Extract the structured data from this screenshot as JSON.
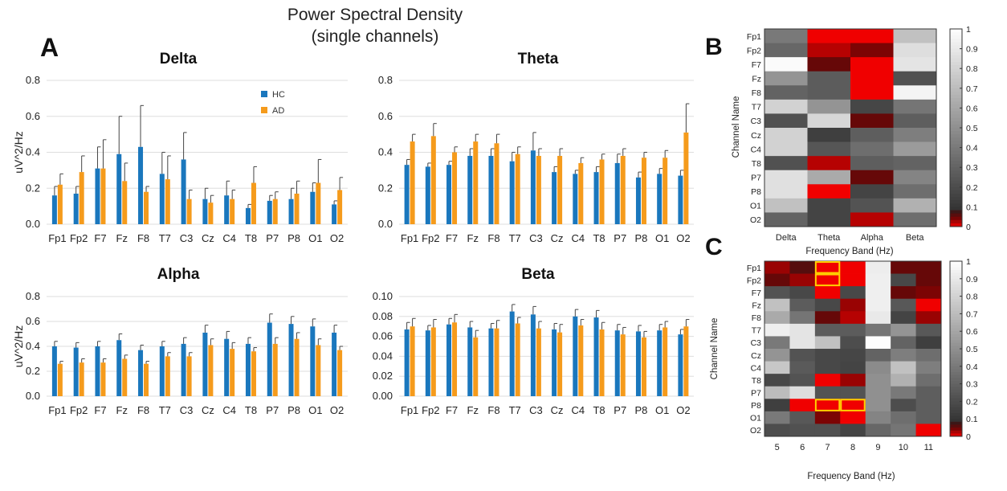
{
  "figure": {
    "title_line1": "Power Spectral Density",
    "title_line2": "(single channels)",
    "panel_a": "A",
    "panel_b": "B",
    "panel_c": "C"
  },
  "colors": {
    "hc": "#1a77bd",
    "ad": "#f59b1c",
    "grid": "#dedede",
    "highlight": "#ffd200"
  },
  "chart_data": [
    {
      "id": "delta",
      "type": "bar",
      "title": "Delta",
      "ylabel": "uV^2/Hz",
      "ylim": [
        0,
        0.8
      ],
      "yticks": [
        "0.0",
        "0.2",
        "0.4",
        "0.6",
        "0.8"
      ],
      "categories": [
        "Fp1",
        "Fp2",
        "F7",
        "Fz",
        "F8",
        "T7",
        "C3",
        "Cz",
        "C4",
        "T8",
        "P7",
        "P8",
        "O1",
        "O2"
      ],
      "legend": [
        "HC",
        "AD"
      ],
      "series": [
        {
          "name": "HC",
          "values": [
            0.16,
            0.17,
            0.31,
            0.39,
            0.43,
            0.28,
            0.36,
            0.14,
            0.16,
            0.09,
            0.13,
            0.14,
            0.18,
            0.11
          ],
          "err": [
            0.05,
            0.04,
            0.12,
            0.21,
            0.23,
            0.12,
            0.15,
            0.06,
            0.08,
            0.02,
            0.03,
            0.06,
            0.05,
            0.02
          ]
        },
        {
          "name": "AD",
          "values": [
            0.22,
            0.29,
            0.31,
            0.24,
            0.18,
            0.25,
            0.14,
            0.12,
            0.14,
            0.23,
            0.14,
            0.17,
            0.23,
            0.19
          ],
          "err": [
            0.06,
            0.09,
            0.16,
            0.1,
            0.03,
            0.13,
            0.05,
            0.04,
            0.05,
            0.09,
            0.04,
            0.07,
            0.13,
            0.07
          ]
        }
      ]
    },
    {
      "id": "theta",
      "type": "bar",
      "title": "Theta",
      "ylabel": "",
      "ylim": [
        0,
        0.8
      ],
      "yticks": [
        "0.0",
        "0.2",
        "0.4",
        "0.6",
        "0.8"
      ],
      "categories": [
        "Fp1",
        "Fp2",
        "F7",
        "Fz",
        "F8",
        "T7",
        "C3",
        "Cz",
        "C4",
        "T8",
        "P7",
        "P8",
        "O1",
        "O2"
      ],
      "series": [
        {
          "name": "HC",
          "values": [
            0.33,
            0.32,
            0.33,
            0.38,
            0.38,
            0.35,
            0.41,
            0.29,
            0.28,
            0.29,
            0.34,
            0.26,
            0.28,
            0.27
          ],
          "err": [
            0.03,
            0.02,
            0.02,
            0.04,
            0.04,
            0.05,
            0.1,
            0.03,
            0.02,
            0.03,
            0.05,
            0.03,
            0.03,
            0.03
          ]
        },
        {
          "name": "AD",
          "values": [
            0.46,
            0.49,
            0.4,
            0.46,
            0.45,
            0.39,
            0.38,
            0.38,
            0.34,
            0.36,
            0.38,
            0.37,
            0.37,
            0.51
          ],
          "err": [
            0.04,
            0.07,
            0.03,
            0.04,
            0.05,
            0.04,
            0.04,
            0.04,
            0.03,
            0.03,
            0.04,
            0.03,
            0.04,
            0.16
          ]
        }
      ]
    },
    {
      "id": "alpha",
      "type": "bar",
      "title": "Alpha",
      "ylabel": "uV^2/Hz",
      "ylim": [
        0,
        0.8
      ],
      "yticks": [
        "0.0",
        "0.2",
        "0.4",
        "0.6",
        "0.8"
      ],
      "categories": [
        "Fp1",
        "Fp2",
        "F7",
        "Fz",
        "F8",
        "T7",
        "C3",
        "Cz",
        "C4",
        "T8",
        "P7",
        "P8",
        "O1",
        "O2"
      ],
      "series": [
        {
          "name": "HC",
          "values": [
            0.4,
            0.39,
            0.4,
            0.45,
            0.37,
            0.4,
            0.42,
            0.51,
            0.46,
            0.42,
            0.59,
            0.58,
            0.56,
            0.51
          ],
          "err": [
            0.04,
            0.04,
            0.04,
            0.05,
            0.04,
            0.04,
            0.05,
            0.06,
            0.06,
            0.05,
            0.07,
            0.06,
            0.06,
            0.06
          ]
        },
        {
          "name": "AD",
          "values": [
            0.26,
            0.27,
            0.27,
            0.3,
            0.26,
            0.32,
            0.32,
            0.41,
            0.38,
            0.36,
            0.42,
            0.46,
            0.41,
            0.37
          ],
          "err": [
            0.02,
            0.03,
            0.03,
            0.03,
            0.02,
            0.03,
            0.03,
            0.05,
            0.05,
            0.03,
            0.05,
            0.05,
            0.05,
            0.03
          ]
        }
      ]
    },
    {
      "id": "beta",
      "type": "bar",
      "title": "Beta",
      "ylabel": "",
      "ylim": [
        0,
        0.1
      ],
      "yticks": [
        "0.00",
        "0.02",
        "0.04",
        "0.06",
        "0.08",
        "0.10"
      ],
      "categories": [
        "Fp1",
        "Fp2",
        "F7",
        "Fz",
        "F8",
        "T7",
        "C3",
        "Cz",
        "C4",
        "T8",
        "P7",
        "P8",
        "O1",
        "O2"
      ],
      "series": [
        {
          "name": "HC",
          "values": [
            0.067,
            0.066,
            0.072,
            0.069,
            0.068,
            0.085,
            0.082,
            0.067,
            0.08,
            0.079,
            0.066,
            0.065,
            0.066,
            0.062
          ],
          "err": [
            0.007,
            0.005,
            0.006,
            0.006,
            0.005,
            0.007,
            0.008,
            0.006,
            0.007,
            0.007,
            0.006,
            0.006,
            0.006,
            0.005
          ]
        },
        {
          "name": "AD",
          "values": [
            0.07,
            0.069,
            0.074,
            0.059,
            0.068,
            0.073,
            0.068,
            0.064,
            0.071,
            0.067,
            0.062,
            0.059,
            0.069,
            0.07
          ],
          "err": [
            0.008,
            0.008,
            0.008,
            0.007,
            0.008,
            0.006,
            0.007,
            0.008,
            0.006,
            0.007,
            0.007,
            0.006,
            0.006,
            0.007
          ]
        }
      ]
    },
    {
      "id": "heatB",
      "type": "heatmap",
      "xlabel": "Frequency Band (Hz)",
      "ylabel": "Channel Name",
      "xcats": [
        "Delta",
        "Theta",
        "Alpha",
        "Beta"
      ],
      "ycats": [
        "Fp1",
        "Fp2",
        "F7",
        "Fz",
        "F8",
        "T7",
        "C3",
        "Cz",
        "C4",
        "T8",
        "P7",
        "P8",
        "O1",
        "O2"
      ],
      "values": [
        [
          0.4,
          0.0,
          0.0,
          0.72
        ],
        [
          0.32,
          0.02,
          0.04,
          0.85
        ],
        [
          0.98,
          0.05,
          0.0,
          0.88
        ],
        [
          0.52,
          0.27,
          0.0,
          0.22
        ],
        [
          0.3,
          0.27,
          0.0,
          0.95
        ],
        [
          0.8,
          0.52,
          0.17,
          0.38
        ],
        [
          0.22,
          0.82,
          0.05,
          0.28
        ],
        [
          0.8,
          0.14,
          0.28,
          0.42
        ],
        [
          0.8,
          0.24,
          0.35,
          0.55
        ],
        [
          0.22,
          0.02,
          0.28,
          0.3
        ],
        [
          0.86,
          0.62,
          0.05,
          0.45
        ],
        [
          0.86,
          0.0,
          0.16,
          0.35
        ],
        [
          0.72,
          0.16,
          0.23,
          0.65
        ],
        [
          0.3,
          0.16,
          0.02,
          0.35
        ]
      ],
      "colorbar_ticks": [
        "0",
        "0.1",
        "0.2",
        "0.3",
        "0.4",
        "0.5",
        "0.6",
        "0.7",
        "0.8",
        "0.9",
        "1"
      ]
    },
    {
      "id": "heatC",
      "type": "heatmap",
      "xlabel": "Frequency Band (Hz)",
      "ylabel": "Channel Name",
      "xcats": [
        "5",
        "6",
        "7",
        "8",
        "9",
        "10",
        "11"
      ],
      "ycats": [
        "Fp1",
        "Fp2",
        "F7",
        "Fz",
        "F8",
        "T7",
        "C3",
        "Cz",
        "C4",
        "T8",
        "P7",
        "P8",
        "O1",
        "O2"
      ],
      "values": [
        [
          0.03,
          0.06,
          0.0,
          0.0,
          0.92,
          0.05,
          0.05
        ],
        [
          0.05,
          0.03,
          0.0,
          0.0,
          0.93,
          0.18,
          0.05
        ],
        [
          0.23,
          0.18,
          0.0,
          0.18,
          0.93,
          0.05,
          0.04
        ],
        [
          0.72,
          0.27,
          0.18,
          0.03,
          0.93,
          0.25,
          0.0
        ],
        [
          0.62,
          0.38,
          0.05,
          0.02,
          0.9,
          0.16,
          0.03
        ],
        [
          0.93,
          0.88,
          0.27,
          0.27,
          0.38,
          0.52,
          0.25
        ],
        [
          0.4,
          0.88,
          0.72,
          0.2,
          0.99,
          0.3,
          0.14
        ],
        [
          0.52,
          0.23,
          0.18,
          0.17,
          0.3,
          0.42,
          0.35
        ],
        [
          0.75,
          0.26,
          0.18,
          0.16,
          0.48,
          0.72,
          0.42
        ],
        [
          0.18,
          0.23,
          0.0,
          0.03,
          0.5,
          0.65,
          0.35
        ],
        [
          0.7,
          0.85,
          0.23,
          0.23,
          0.5,
          0.4,
          0.28
        ],
        [
          0.14,
          0.0,
          0.0,
          0.0,
          0.5,
          0.2,
          0.28
        ],
        [
          0.4,
          0.25,
          0.04,
          0.0,
          0.45,
          0.35,
          0.28
        ],
        [
          0.2,
          0.22,
          0.22,
          0.16,
          0.32,
          0.38,
          0.0
        ]
      ],
      "highlights": [
        [
          0,
          2
        ],
        [
          1,
          2
        ],
        [
          11,
          2
        ],
        [
          11,
          3
        ]
      ],
      "colorbar_ticks": [
        "0",
        "0.1",
        "0.2",
        "0.3",
        "0.4",
        "0.5",
        "0.6",
        "0.7",
        "0.8",
        "0.9",
        "1"
      ]
    }
  ]
}
